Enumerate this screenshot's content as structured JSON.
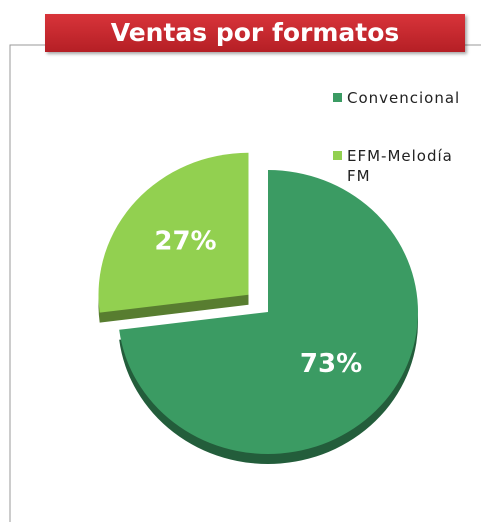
{
  "chart_data": {
    "type": "pie",
    "title": "Ventas por formatos",
    "categories": [
      "Convencional",
      "EFM-Melodía FM"
    ],
    "values": [
      73,
      27
    ],
    "value_labels": [
      "73%",
      "27%"
    ],
    "colors": [
      "#3b9b63",
      "#92d050"
    ],
    "legend": "right"
  }
}
